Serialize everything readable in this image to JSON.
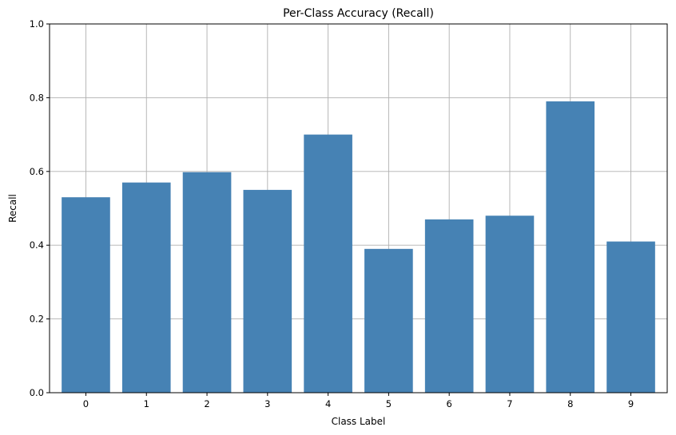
{
  "chart_data": {
    "type": "bar",
    "title": "Per-Class Accuracy (Recall)",
    "xlabel": "Class Label",
    "ylabel": "Recall",
    "categories": [
      "0",
      "1",
      "2",
      "3",
      "4",
      "5",
      "6",
      "7",
      "8",
      "9"
    ],
    "values": [
      0.53,
      0.57,
      0.598,
      0.55,
      0.7,
      0.39,
      0.47,
      0.48,
      0.79,
      0.41
    ],
    "ylim": [
      0,
      1.0
    ],
    "yticks": [
      "0.0",
      "0.2",
      "0.4",
      "0.6",
      "0.8",
      "1.0"
    ],
    "grid": true,
    "bar_color": "#4682b4"
  }
}
